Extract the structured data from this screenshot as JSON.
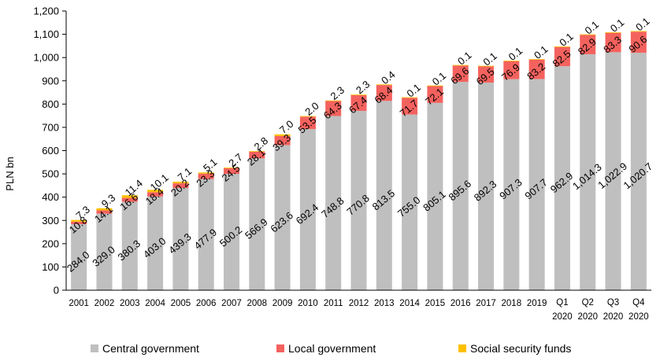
{
  "chart_data": {
    "type": "bar",
    "stacked": true,
    "ylabel": "PLN bn",
    "ylim": [
      0,
      1200
    ],
    "yticks": [
      "0",
      "100",
      "200",
      "300",
      "400",
      "500",
      "600",
      "700",
      "800",
      "900",
      "1,000",
      "1,100",
      "1,200"
    ],
    "grid": false,
    "legend_position": "bottom",
    "categories": [
      [
        "2001"
      ],
      [
        "2002"
      ],
      [
        "2003"
      ],
      [
        "2004"
      ],
      [
        "2005"
      ],
      [
        "2006"
      ],
      [
        "2007"
      ],
      [
        "2008"
      ],
      [
        "2009"
      ],
      [
        "2010"
      ],
      [
        "2011"
      ],
      [
        "2012"
      ],
      [
        "2013"
      ],
      [
        "2014"
      ],
      [
        "2015"
      ],
      [
        "2016"
      ],
      [
        "2017"
      ],
      [
        "2018"
      ],
      [
        "2019"
      ],
      [
        "Q1",
        "2020"
      ],
      [
        "Q2",
        "2020"
      ],
      [
        "Q3",
        "2020"
      ],
      [
        "Q4",
        "2020"
      ]
    ],
    "series": [
      {
        "name": "Central government",
        "color": "#bfbfbf",
        "values": [
          284.0,
          329.0,
          380.3,
          403.0,
          439.3,
          477.9,
          500.2,
          566.9,
          623.6,
          692.4,
          748.8,
          770.8,
          813.5,
          755.0,
          805.1,
          895.6,
          892.3,
          907.3,
          907.7,
          962.9,
          1014.3,
          1022.9,
          1020.7
        ],
        "labels": [
          "284.0",
          "329.0",
          "380.3",
          "403.0",
          "439.3",
          "477.9",
          "500.2",
          "566.9",
          "623.6",
          "692.4",
          "748.8",
          "770.8",
          "813.5",
          "755.0",
          "805.1",
          "895.6",
          "892.3",
          "907.3",
          "907.7",
          "962.9",
          "1,014.3",
          "1,022.9",
          "1,020.7"
        ]
      },
      {
        "name": "Local government",
        "color": "#f4625e",
        "values": [
          10.8,
          14.1,
          16.6,
          18.4,
          20.2,
          23.3,
          24.5,
          28.1,
          39.3,
          53.5,
          64.3,
          67.4,
          68.4,
          71.7,
          72.1,
          69.6,
          69.5,
          76.9,
          83.2,
          82.5,
          82.9,
          83.3,
          90.6
        ],
        "labels": [
          "10.8",
          "14.1",
          "16.6",
          "18.4",
          "20.2",
          "23.3",
          "24.5",
          "28.1",
          "39.3",
          "53.5",
          "64.3",
          "67.4",
          "68.4",
          "71.7",
          "72.1",
          "69.6",
          "69.5",
          "76.9",
          "83.2",
          "82.5",
          "82.9",
          "83.3",
          "90.6"
        ]
      },
      {
        "name": "Social security funds",
        "color": "#ffc000",
        "values": [
          7.3,
          9.3,
          11.4,
          10.1,
          7.1,
          5.1,
          2.7,
          2.8,
          7.0,
          2.0,
          2.3,
          2.3,
          0.4,
          0.1,
          0.1,
          0.1,
          0.1,
          0.1,
          0.1,
          0.1,
          0.1,
          0.1,
          0.1
        ],
        "labels": [
          "7.3",
          "9.3",
          "11.4",
          "10.1",
          "7.1",
          "5.1",
          "2.7",
          "2.8",
          "7.0",
          "2.0",
          "2.3",
          "2.3",
          "0.4",
          "0.1",
          "0.1",
          "0.1",
          "0.1",
          "0.1",
          "0.1",
          "0.1",
          "0.1",
          "0.1",
          "0.1"
        ]
      }
    ]
  }
}
